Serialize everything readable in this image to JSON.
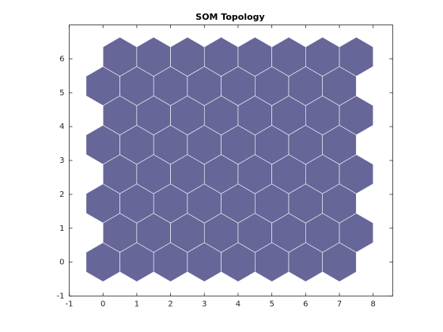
{
  "chart_data": {
    "type": "hexagon",
    "title": "SOM Topology",
    "x": [
      0,
      1,
      2,
      3,
      4,
      5,
      6,
      7,
      0.5,
      1.5,
      2.5,
      3.5,
      4.5,
      5.5,
      6.5,
      7.5,
      0,
      1,
      2,
      3,
      4,
      5,
      6,
      7,
      0.5,
      1.5,
      2.5,
      3.5,
      4.5,
      5.5,
      6.5,
      7.5,
      0,
      1,
      2,
      3,
      4,
      5,
      6,
      7,
      0.5,
      1.5,
      2.5,
      3.5,
      4.5,
      5.5,
      6.5,
      7.5,
      0,
      1,
      2,
      3,
      4,
      5,
      6,
      7,
      0.5,
      1.5,
      2.5,
      3.5,
      4.5,
      5.5,
      6.5,
      7.5
    ],
    "y": [
      0,
      0,
      0,
      0,
      0,
      0,
      0,
      0,
      0.866,
      0.866,
      0.866,
      0.866,
      0.866,
      0.866,
      0.866,
      0.866,
      1.732,
      1.732,
      1.732,
      1.732,
      1.732,
      1.732,
      1.732,
      1.732,
      2.598,
      2.598,
      2.598,
      2.598,
      2.598,
      2.598,
      2.598,
      2.598,
      3.464,
      3.464,
      3.464,
      3.464,
      3.464,
      3.464,
      3.464,
      3.464,
      4.33,
      4.33,
      4.33,
      4.33,
      4.33,
      4.33,
      4.33,
      4.33,
      5.196,
      5.196,
      5.196,
      5.196,
      5.196,
      5.196,
      5.196,
      5.196,
      6.062,
      6.062,
      6.062,
      6.062,
      6.062,
      6.062,
      6.062,
      6.062
    ],
    "color": "#666699",
    "xlim": [
      -1,
      8.58
    ],
    "ylim": [
      -1,
      7
    ],
    "xticks": [
      -1,
      0,
      1,
      2,
      3,
      4,
      5,
      6,
      7,
      8
    ],
    "yticks": [
      -1,
      0,
      1,
      2,
      3,
      4,
      5,
      6
    ]
  }
}
